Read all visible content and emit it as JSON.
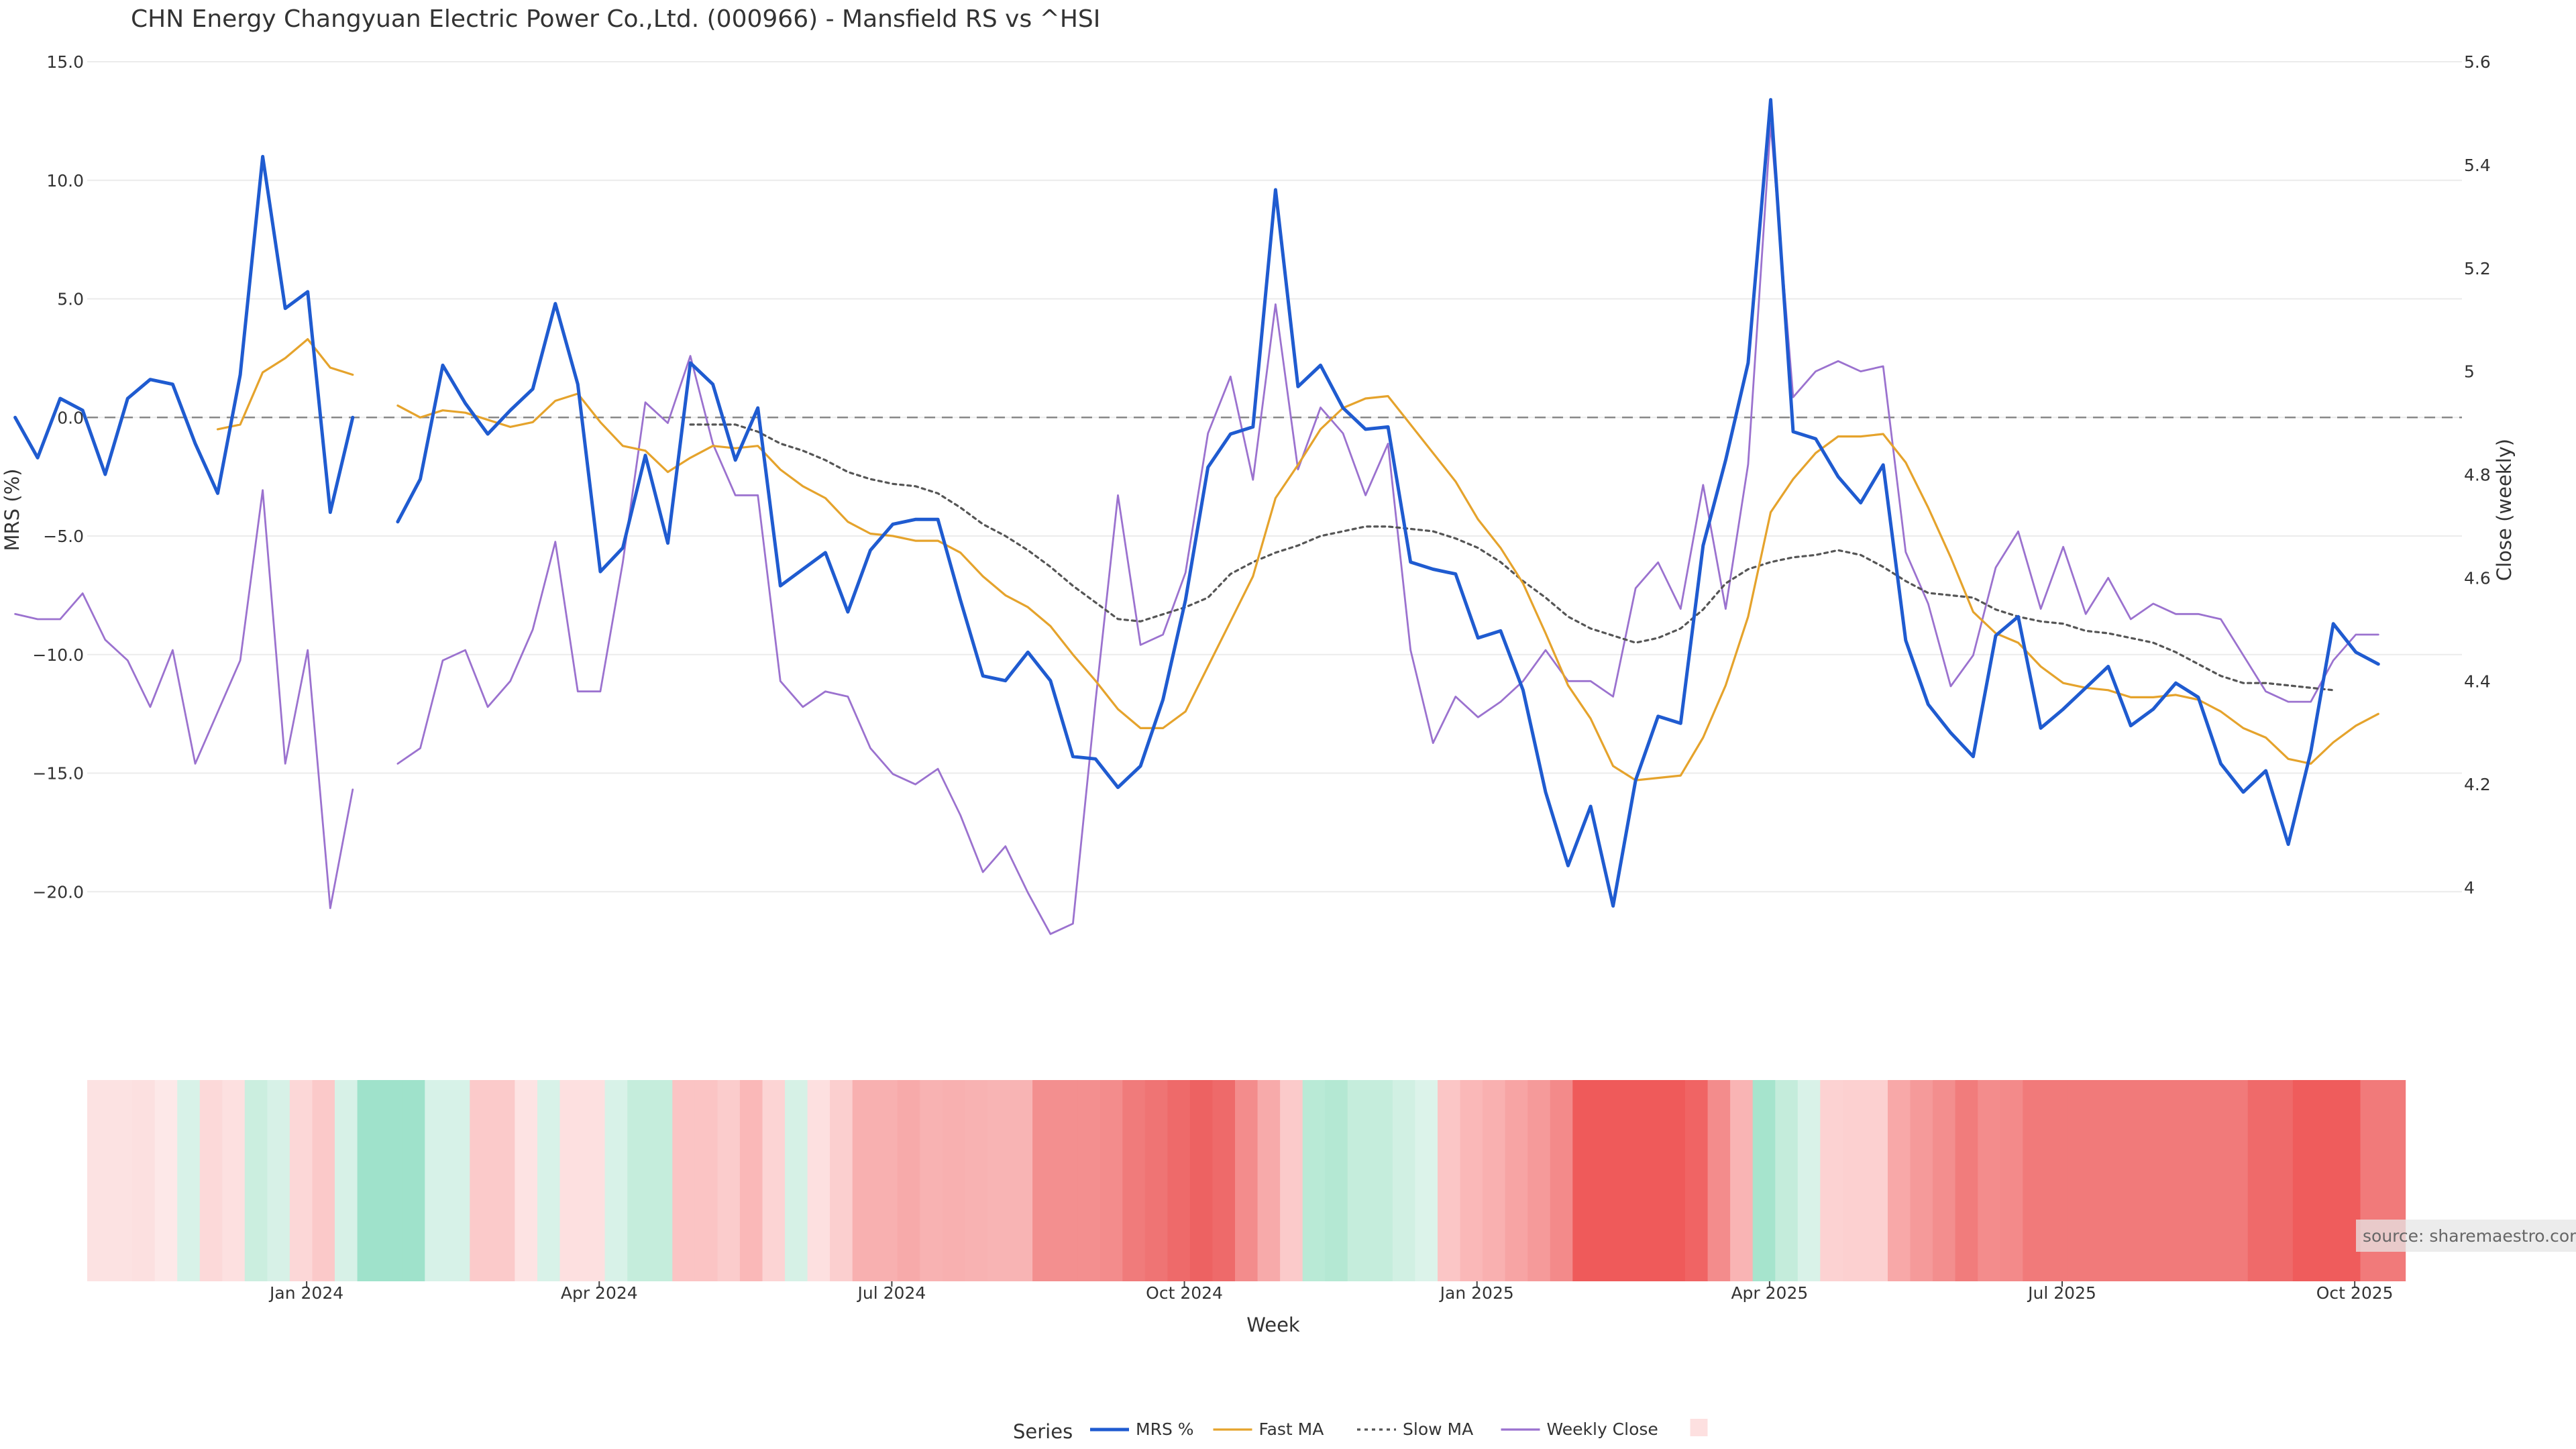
{
  "chart_data": {
    "type": "line",
    "title": "CHN Energy Changyuan Electric Power Co.,Ltd. (000966) - Mansfield RS vs ^HSI",
    "xlabel": "Week",
    "ylabel_left": "MRS (%)",
    "ylabel_right": "Close (weekly)",
    "y_left_range": [
      -22.0,
      15.0
    ],
    "y_right_range": [
      3.9,
      5.6
    ],
    "y_left_ticks": [
      "15.0",
      "10.0",
      "5.0",
      "0.0",
      "−5.0",
      "−10.0",
      "−15.0",
      "−20.0"
    ],
    "y_left_tick_values": [
      15,
      10,
      5,
      0,
      -5,
      -10,
      -15,
      -20
    ],
    "y_right_ticks": [
      "5.6",
      "5.4",
      "5.2",
      "5",
      "4.8",
      "4.6",
      "4.4",
      "4.2",
      "4"
    ],
    "y_right_tick_values": [
      5.6,
      5.4,
      5.2,
      5.0,
      4.8,
      4.6,
      4.4,
      4.2,
      4.0
    ],
    "x_ticks": [
      "Jan 2024",
      "Apr 2024",
      "Jul 2024",
      "Oct 2024",
      "Jan 2025",
      "Apr 2025",
      "Jul 2025",
      "Oct 2025"
    ],
    "x_tick_weeks": [
      9.75,
      22.75,
      35.75,
      48.75,
      61.75,
      74.75,
      87.75,
      100.75
    ],
    "gap_weeks": [
      16
    ],
    "legend_title": "Series",
    "series": [
      {
        "name": "MRS %",
        "color": "#1f5bd0",
        "style": "solid",
        "values": [
          0.0,
          -1.7,
          0.8,
          0.3,
          -2.4,
          0.8,
          1.6,
          1.4,
          -1.1,
          -3.2,
          1.8,
          11.0,
          4.6,
          5.3,
          -4.0,
          0.0,
          null,
          -4.4,
          -2.6,
          2.2,
          0.6,
          -0.7,
          0.3,
          1.2,
          4.8,
          1.4,
          -6.5,
          -5.5,
          -1.6,
          -5.3,
          2.3,
          1.4,
          -1.8,
          0.4,
          -7.1,
          -6.4,
          -5.7,
          -8.2,
          -5.6,
          -4.5,
          -4.3,
          -4.3,
          -7.7,
          -10.9,
          -11.1,
          -9.9,
          -11.1,
          -14.3,
          -14.4,
          -15.6,
          -14.7,
          -11.9,
          -7.7,
          -2.1,
          -0.7,
          -0.4,
          9.6,
          1.3,
          2.2,
          0.4,
          -0.5,
          -0.4,
          -6.1,
          -6.4,
          -6.6,
          -9.3,
          -9.0,
          -11.5,
          -15.8,
          -18.9,
          -16.4,
          -20.6,
          -15.3,
          -12.6,
          -12.9,
          -5.4,
          -1.8,
          2.3,
          13.4,
          -0.6,
          -0.9,
          -2.5,
          -3.6,
          -2.0,
          -9.4,
          -12.1,
          -13.3,
          -14.3,
          -9.2,
          -8.4,
          -13.1,
          -12.3,
          -11.4,
          -10.5,
          -13.0,
          -12.3,
          -11.2,
          -11.8,
          -14.6,
          -15.8,
          -14.9,
          -18.0,
          -14.1,
          -8.7,
          -9.9,
          -10.4
        ]
      },
      {
        "name": "Fast MA",
        "color": "#e5a32c",
        "style": "solid",
        "values": [
          null,
          null,
          null,
          null,
          null,
          null,
          null,
          null,
          null,
          -0.5,
          -0.3,
          1.9,
          2.5,
          3.3,
          2.1,
          1.8,
          null,
          0.5,
          0.0,
          0.3,
          0.2,
          -0.1,
          -0.4,
          -0.2,
          0.7,
          1.0,
          -0.2,
          -1.2,
          -1.4,
          -2.3,
          -1.7,
          -1.2,
          -1.3,
          -1.2,
          -2.2,
          -2.9,
          -3.4,
          -4.4,
          -4.9,
          -5.0,
          -5.2,
          -5.2,
          -5.7,
          -6.7,
          -7.5,
          -8.0,
          -8.8,
          -10.0,
          -11.1,
          -12.3,
          -13.1,
          -13.1,
          -12.4,
          -10.5,
          -8.6,
          -6.7,
          -3.4,
          -2.0,
          -0.5,
          0.4,
          0.8,
          0.9,
          -0.3,
          -1.5,
          -2.7,
          -4.3,
          -5.5,
          -7.0,
          -9.1,
          -11.3,
          -12.7,
          -14.7,
          -15.3,
          -15.2,
          -15.1,
          -13.5,
          -11.3,
          -8.4,
          -4.0,
          -2.6,
          -1.5,
          -0.8,
          -0.8,
          -0.7,
          -1.9,
          -3.8,
          -5.9,
          -8.2,
          -9.1,
          -9.5,
          -10.5,
          -11.2,
          -11.4,
          -11.5,
          -11.8,
          -11.8,
          -11.7,
          -11.9,
          -12.4,
          -13.1,
          -13.5,
          -14.4,
          -14.6,
          -13.7,
          -13.0,
          -12.5
        ]
      },
      {
        "name": "Slow MA",
        "color": "#555555",
        "style": "dotted",
        "values": [
          null,
          null,
          null,
          null,
          null,
          null,
          null,
          null,
          null,
          null,
          null,
          null,
          null,
          null,
          null,
          null,
          null,
          null,
          null,
          null,
          null,
          null,
          null,
          null,
          null,
          null,
          null,
          null,
          null,
          null,
          -0.3,
          -0.3,
          -0.3,
          -0.6,
          -1.1,
          -1.4,
          -1.8,
          -2.3,
          -2.6,
          -2.8,
          -2.9,
          -3.2,
          -3.8,
          -4.5,
          -5.0,
          -5.6,
          -6.3,
          -7.1,
          -7.8,
          -8.5,
          -8.6,
          -8.3,
          -8.0,
          -7.6,
          -6.6,
          -6.1,
          -5.7,
          -5.4,
          -5.0,
          -4.8,
          -4.6,
          -4.6,
          -4.7,
          -4.8,
          -5.1,
          -5.5,
          -6.1,
          -6.9,
          -7.6,
          -8.4,
          -8.9,
          -9.2,
          -9.5,
          -9.3,
          -8.9,
          -8.1,
          -7.0,
          -6.4,
          -6.1,
          -5.9,
          -5.8,
          -5.6,
          -5.8,
          -6.3,
          -6.9,
          -7.4,
          -7.5,
          -7.6,
          -8.1,
          -8.4,
          -8.6,
          -8.7,
          -9.0,
          -9.1,
          -9.3,
          -9.5,
          -9.9,
          -10.4,
          -10.9,
          -11.2,
          -11.2,
          -11.3,
          -11.4,
          -11.5
        ]
      },
      {
        "name": "Weekly Close",
        "color": "#9b72cf",
        "style": "solid",
        "axis": "right",
        "values": [
          4.53,
          4.52,
          4.52,
          4.57,
          4.48,
          4.44,
          4.35,
          4.46,
          4.24,
          4.34,
          4.44,
          4.77,
          4.24,
          4.46,
          3.96,
          4.19,
          null,
          4.24,
          4.27,
          4.44,
          4.46,
          4.35,
          4.4,
          4.5,
          4.67,
          4.38,
          4.38,
          4.63,
          4.94,
          4.9,
          5.03,
          4.86,
          4.76,
          4.76,
          4.4,
          4.35,
          4.38,
          4.37,
          4.27,
          4.22,
          4.2,
          4.23,
          4.14,
          4.03,
          4.08,
          3.99,
          3.91,
          3.93,
          4.36,
          4.76,
          4.47,
          4.49,
          4.61,
          4.88,
          4.99,
          4.79,
          5.13,
          4.81,
          4.93,
          4.88,
          4.76,
          4.86,
          4.46,
          4.28,
          4.37,
          4.33,
          4.36,
          4.4,
          4.46,
          4.4,
          4.4,
          4.37,
          4.58,
          4.63,
          4.54,
          4.78,
          4.54,
          4.82,
          5.48,
          4.95,
          5.0,
          5.02,
          5.0,
          5.01,
          4.65,
          4.55,
          4.39,
          4.45,
          4.62,
          4.69,
          4.54,
          4.66,
          4.53,
          4.6,
          4.52,
          4.55,
          4.53,
          4.53,
          4.52,
          4.45,
          4.38,
          4.36,
          4.36,
          4.44,
          4.49,
          4.49
        ]
      }
    ],
    "strip_cells": [
      {
        "week": 0,
        "color": "#fce2e2"
      },
      {
        "week": 1,
        "color": "#fce2e2"
      },
      {
        "week": 2,
        "color": "#fce0e0"
      },
      {
        "week": 3,
        "color": "#fde8e8"
      },
      {
        "week": 4,
        "color": "#d8f2e8"
      },
      {
        "week": 5,
        "color": "#fcd9d9"
      },
      {
        "week": 6,
        "color": "#fde0e0"
      },
      {
        "week": 7,
        "color": "#cbeedf"
      },
      {
        "week": 8,
        "color": "#d7f1e7"
      },
      {
        "week": 9,
        "color": "#fcd7d7"
      },
      {
        "week": 10,
        "color": "#fbc9c9"
      },
      {
        "week": 11,
        "color": "#d7f1e7"
      },
      {
        "week": 12,
        "color": "#9fe2cb"
      },
      {
        "week": 13,
        "color": "#9fe2cb"
      },
      {
        "week": 14,
        "color": "#9fe2cb"
      },
      {
        "week": 15,
        "color": "#d7f2e8"
      },
      {
        "week": 16,
        "color": "#d7f2e8"
      },
      {
        "week": 17,
        "color": "#fbcaca"
      },
      {
        "week": 18,
        "color": "#fbcaca"
      },
      {
        "week": 19,
        "color": "#fde3e3"
      },
      {
        "week": 20,
        "color": "#d8f2e8"
      },
      {
        "week": 21,
        "color": "#fde0e0"
      },
      {
        "week": 22,
        "color": "#fde0e0"
      },
      {
        "week": 23,
        "color": "#d8f2e8"
      },
      {
        "week": 24,
        "color": "#c5eddc"
      },
      {
        "week": 25,
        "color": "#c5eddc"
      },
      {
        "week": 26,
        "color": "#fbc4c4"
      },
      {
        "week": 27,
        "color": "#fbc4c4"
      },
      {
        "week": 28,
        "color": "#fbcccc"
      },
      {
        "week": 29,
        "color": "#fab8b8"
      },
      {
        "week": 30,
        "color": "#fcd4d4"
      },
      {
        "week": 31,
        "color": "#d6f1e6"
      },
      {
        "week": 32,
        "color": "#fde0e0"
      },
      {
        "week": 33,
        "color": "#fbcfcf"
      },
      {
        "week": 34,
        "color": "#f8b0b0"
      },
      {
        "week": 35,
        "color": "#f8b0b0"
      },
      {
        "week": 36,
        "color": "#f7aaaa"
      },
      {
        "week": 37,
        "color": "#f8b2b2"
      },
      {
        "week": 38,
        "color": "#f8b0b0"
      },
      {
        "week": 39,
        "color": "#f8b2b2"
      },
      {
        "week": 40,
        "color": "#f8b4b4"
      },
      {
        "week": 41,
        "color": "#f8b4b4"
      },
      {
        "week": 42,
        "color": "#f38f8f"
      },
      {
        "week": 43,
        "color": "#f38f8f"
      },
      {
        "week": 44,
        "color": "#f38f8f"
      },
      {
        "week": 45,
        "color": "#f38c8c"
      },
      {
        "week": 46,
        "color": "#f07b7b"
      },
      {
        "week": 47,
        "color": "#ef7474"
      },
      {
        "week": 48,
        "color": "#ee6a6a"
      },
      {
        "week": 49,
        "color": "#ed6262"
      },
      {
        "week": 50,
        "color": "#ee6a6a"
      },
      {
        "week": 51,
        "color": "#f38c8c"
      },
      {
        "week": 52,
        "color": "#f7aaaa"
      },
      {
        "week": 53,
        "color": "#fbcaca"
      },
      {
        "week": 54,
        "color": "#b9ead6"
      },
      {
        "week": 55,
        "color": "#b4e8d3"
      },
      {
        "week": 56,
        "color": "#c5eddc"
      },
      {
        "week": 57,
        "color": "#c5eddc"
      },
      {
        "week": 58,
        "color": "#d1f0e3"
      },
      {
        "week": 59,
        "color": "#dcf3ea"
      },
      {
        "week": 60,
        "color": "#fbc6c6"
      },
      {
        "week": 61,
        "color": "#fab8b8"
      },
      {
        "week": 62,
        "color": "#f9b0b0"
      },
      {
        "week": 63,
        "color": "#f7a4a4"
      },
      {
        "week": 64,
        "color": "#f59a9a"
      },
      {
        "week": 65,
        "color": "#f38a8a"
      },
      {
        "week": 66,
        "color": "#ef5a5a"
      },
      {
        "week": 67,
        "color": "#ef5a5a"
      },
      {
        "week": 68,
        "color": "#ef5a5a"
      },
      {
        "week": 69,
        "color": "#ef5a5a"
      },
      {
        "week": 70,
        "color": "#ef5a5a"
      },
      {
        "week": 71,
        "color": "#f06464"
      },
      {
        "week": 72,
        "color": "#f38c8c"
      },
      {
        "week": 73,
        "color": "#f9b4b4"
      },
      {
        "week": 74,
        "color": "#a6e4cd"
      },
      {
        "week": 75,
        "color": "#c4ecdb"
      },
      {
        "week": 76,
        "color": "#d9f2e8"
      },
      {
        "week": 77,
        "color": "#fcd2d2"
      },
      {
        "week": 78,
        "color": "#fcd0d0"
      },
      {
        "week": 79,
        "color": "#fcd0d0"
      },
      {
        "week": 80,
        "color": "#f8a8a8"
      },
      {
        "week": 81,
        "color": "#f59a9a"
      },
      {
        "week": 82,
        "color": "#f38e8e"
      },
      {
        "week": 83,
        "color": "#f17c7c"
      },
      {
        "week": 84,
        "color": "#f38c8c"
      },
      {
        "week": 85,
        "color": "#f38a8a"
      },
      {
        "week": 86,
        "color": "#f17a7a"
      },
      {
        "week": 87,
        "color": "#f17a7a"
      },
      {
        "week": 88,
        "color": "#f17a7a"
      },
      {
        "week": 89,
        "color": "#f17a7a"
      },
      {
        "week": 90,
        "color": "#f17a7a"
      },
      {
        "week": 91,
        "color": "#f17a7a"
      },
      {
        "week": 92,
        "color": "#f17a7a"
      },
      {
        "week": 93,
        "color": "#f17a7a"
      },
      {
        "week": 94,
        "color": "#f17a7a"
      },
      {
        "week": 95,
        "color": "#f17a7a"
      },
      {
        "week": 96,
        "color": "#ef6a6a"
      },
      {
        "week": 97,
        "color": "#ef6a6a"
      },
      {
        "week": 98,
        "color": "#ef5c5c"
      },
      {
        "week": 99,
        "color": "#ef5c5c"
      },
      {
        "week": 100,
        "color": "#ef5c5c"
      },
      {
        "week": 101,
        "color": "#f17a7a"
      },
      {
        "week": 102,
        "color": "#f17a7a"
      }
    ],
    "source_text": "source: sharemaestro.com"
  }
}
